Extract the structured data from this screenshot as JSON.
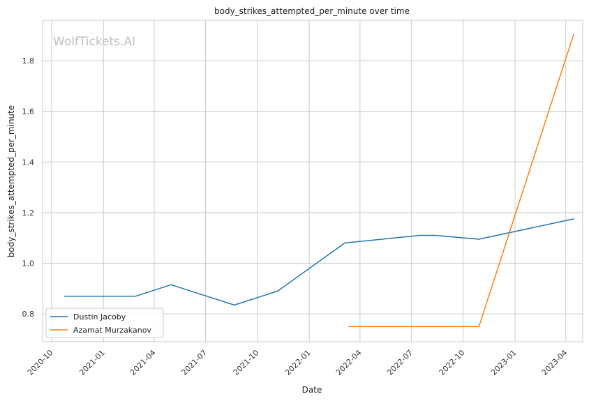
{
  "chart_data": {
    "type": "line",
    "title": "body_strikes_attempted_per_minute over time",
    "xlabel": "Date",
    "ylabel": "body_strikes_attempted_per_minute",
    "watermark": "WolfTickets.AI",
    "x_ticks": [
      "2020-10",
      "2021-01",
      "2021-04",
      "2021-07",
      "2021-10",
      "2022-01",
      "2022-04",
      "2022-07",
      "2022-10",
      "2023-01",
      "2023-04"
    ],
    "y_ticks": [
      0.8,
      1.0,
      1.2,
      1.4,
      1.6,
      1.8
    ],
    "xlim": [
      "2020-09-15",
      "2023-05-01"
    ],
    "ylim": [
      0.69,
      1.96
    ],
    "grid": true,
    "legend_position": "lower-left",
    "series": [
      {
        "name": "Dustin Jacoby",
        "color": "#1f77b4",
        "points": [
          {
            "x": "2020-10-24",
            "y": 0.87
          },
          {
            "x": "2021-02-27",
            "y": 0.87
          },
          {
            "x": "2021-05-01",
            "y": 0.915
          },
          {
            "x": "2021-08-21",
            "y": 0.835
          },
          {
            "x": "2021-11-06",
            "y": 0.89
          },
          {
            "x": "2022-03-05",
            "y": 1.08
          },
          {
            "x": "2022-07-16",
            "y": 1.11
          },
          {
            "x": "2022-08-13",
            "y": 1.11
          },
          {
            "x": "2022-10-29",
            "y": 1.095
          },
          {
            "x": "2023-04-15",
            "y": 1.175
          }
        ]
      },
      {
        "name": "Azamat Murzakanov",
        "color": "#ff7f0e",
        "points": [
          {
            "x": "2022-03-12",
            "y": 0.75
          },
          {
            "x": "2022-10-29",
            "y": 0.75
          },
          {
            "x": "2023-04-15",
            "y": 1.905
          }
        ]
      }
    ]
  }
}
